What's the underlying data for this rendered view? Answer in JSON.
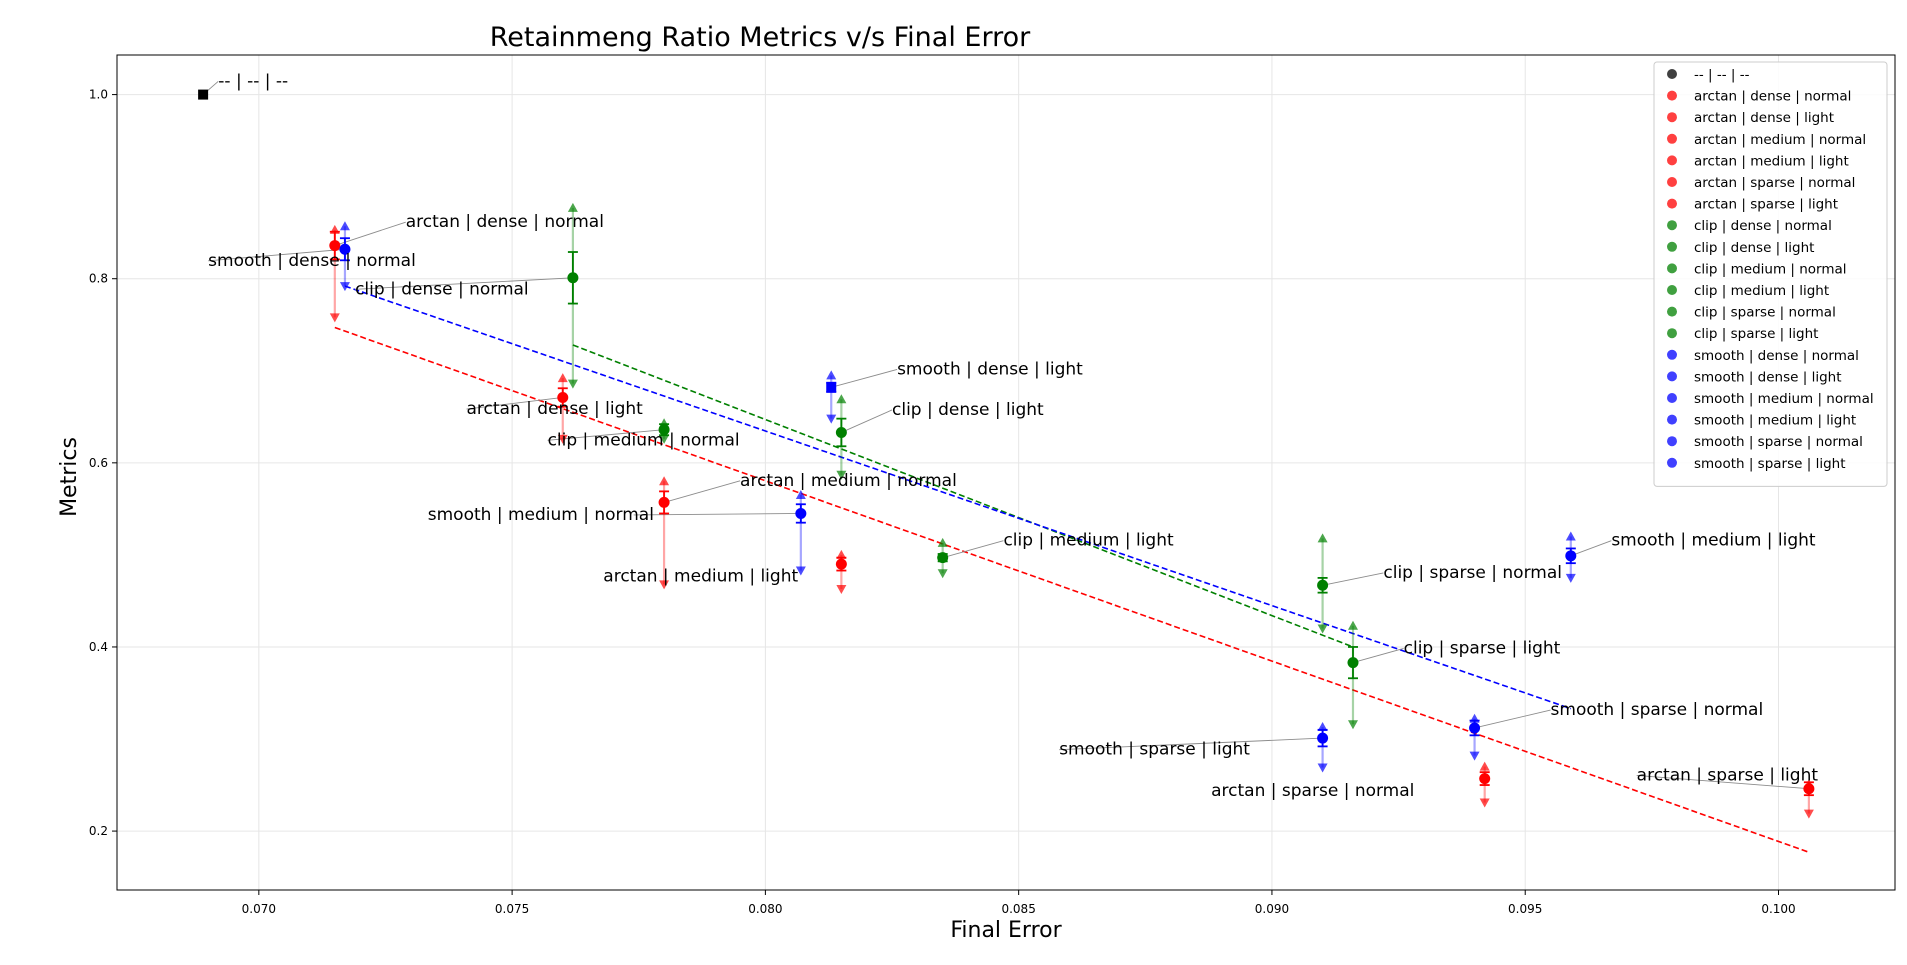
{
  "chart_data": {
    "type": "scatter",
    "title": "Retainmeng Ratio Metrics v/s Final Error",
    "xlabel": "Final Error",
    "ylabel": "Metrics",
    "xlim": [
      0.0672,
      0.1023
    ],
    "ylim": [
      0.136,
      1.043
    ],
    "xticks": [
      "0.070",
      "0.075",
      "0.080",
      "0.085",
      "0.090",
      "0.095",
      "0.100"
    ],
    "yticks": [
      "0.2",
      "0.4",
      "0.6",
      "0.8",
      "1.0"
    ],
    "grid": true,
    "legend_position": "top-right",
    "colors": {
      "--": "#000000",
      "arctan": "#ff0000",
      "clip": "#008000",
      "smooth": "#0000ff"
    },
    "points": [
      {
        "label": "-- | -- | --",
        "group": "--",
        "x": 0.0689,
        "y": 1.0,
        "err": 0.0,
        "hi": 1.0,
        "lo": 1.0,
        "marker": "s"
      },
      {
        "label": "arctan | dense | normal",
        "group": "arctan",
        "x": 0.0715,
        "y": 0.836,
        "err": 0.015,
        "hi": 0.853,
        "lo": 0.758,
        "marker": "o"
      },
      {
        "label": "arctan | dense | light",
        "group": "arctan",
        "x": 0.076,
        "y": 0.671,
        "err": 0.01,
        "hi": 0.692,
        "lo": 0.626,
        "marker": "o"
      },
      {
        "label": "arctan | medium | normal",
        "group": "arctan",
        "x": 0.078,
        "y": 0.557,
        "err": 0.012,
        "hi": 0.58,
        "lo": 0.468,
        "marker": "o"
      },
      {
        "label": "arctan | medium | light",
        "group": "arctan",
        "x": 0.0815,
        "y": 0.49,
        "err": 0.007,
        "hi": 0.5,
        "lo": 0.463,
        "marker": "o"
      },
      {
        "label": "arctan | sparse | normal",
        "group": "arctan",
        "x": 0.0942,
        "y": 0.257,
        "err": 0.007,
        "hi": 0.27,
        "lo": 0.231,
        "marker": "o"
      },
      {
        "label": "arctan | sparse | light",
        "group": "arctan",
        "x": 0.1006,
        "y": 0.246,
        "err": 0.007,
        "hi": 0.251,
        "lo": 0.219,
        "marker": "o"
      },
      {
        "label": "clip | dense | normal",
        "group": "clip",
        "x": 0.0762,
        "y": 0.801,
        "err": 0.028,
        "hi": 0.877,
        "lo": 0.686,
        "marker": "o"
      },
      {
        "label": "clip | dense | light",
        "group": "clip",
        "x": 0.0815,
        "y": 0.633,
        "err": 0.015,
        "hi": 0.669,
        "lo": 0.587,
        "marker": "o"
      },
      {
        "label": "clip | medium | normal",
        "group": "clip",
        "x": 0.078,
        "y": 0.636,
        "err": 0.006,
        "hi": 0.643,
        "lo": 0.626,
        "marker": "o"
      },
      {
        "label": "clip | medium | light",
        "group": "clip",
        "x": 0.0835,
        "y": 0.497,
        "err": 0.004,
        "hi": 0.513,
        "lo": 0.48,
        "marker": "o"
      },
      {
        "label": "clip | sparse | normal",
        "group": "clip",
        "x": 0.091,
        "y": 0.467,
        "err": 0.008,
        "hi": 0.518,
        "lo": 0.42,
        "marker": "o"
      },
      {
        "label": "clip | sparse | light",
        "group": "clip",
        "x": 0.0916,
        "y": 0.383,
        "err": 0.017,
        "hi": 0.423,
        "lo": 0.316,
        "marker": "o"
      },
      {
        "label": "smooth | dense | normal",
        "group": "smooth",
        "x": 0.0717,
        "y": 0.832,
        "err": 0.012,
        "hi": 0.857,
        "lo": 0.792,
        "marker": "o"
      },
      {
        "label": "smooth | dense | light",
        "group": "smooth",
        "x": 0.0813,
        "y": 0.682,
        "err": 0.005,
        "hi": 0.695,
        "lo": 0.648,
        "marker": "s"
      },
      {
        "label": "smooth | medium | normal",
        "group": "smooth",
        "x": 0.0807,
        "y": 0.545,
        "err": 0.01,
        "hi": 0.565,
        "lo": 0.483,
        "marker": "o"
      },
      {
        "label": "smooth | medium | light",
        "group": "smooth",
        "x": 0.0959,
        "y": 0.499,
        "err": 0.008,
        "hi": 0.52,
        "lo": 0.475,
        "marker": "o"
      },
      {
        "label": "smooth | sparse | normal",
        "group": "smooth",
        "x": 0.094,
        "y": 0.312,
        "err": 0.008,
        "hi": 0.322,
        "lo": 0.282,
        "marker": "o"
      },
      {
        "label": "smooth | sparse | light",
        "group": "smooth",
        "x": 0.091,
        "y": 0.301,
        "err": 0.009,
        "hi": 0.313,
        "lo": 0.269,
        "marker": "o"
      }
    ],
    "trend_lines": [
      {
        "group": "arctan",
        "x": [
          0.0715,
          0.1006
        ],
        "y": [
          0.747,
          0.177
        ],
        "style": "dashed"
      },
      {
        "group": "clip",
        "x": [
          0.0762,
          0.0916
        ],
        "y": [
          0.728,
          0.4
        ],
        "style": "dashed"
      },
      {
        "group": "smooth",
        "x": [
          0.0717,
          0.0959
        ],
        "y": [
          0.792,
          0.333
        ],
        "style": "dashed"
      }
    ],
    "annotations": [
      {
        "text": "-- | -- | --",
        "point": 0,
        "tx": 0.0692,
        "ty": 1.009,
        "anchor": "start"
      },
      {
        "text": "arctan | dense | normal",
        "point": 1,
        "tx": 0.0729,
        "ty": 0.856,
        "anchor": "start"
      },
      {
        "text": "smooth | dense | normal",
        "point": 13,
        "tx": 0.069,
        "ty": 0.814,
        "anchor": "start"
      },
      {
        "text": "clip | dense | normal",
        "point": 7,
        "tx": 0.0719,
        "ty": 0.783,
        "anchor": "start"
      },
      {
        "text": "smooth | dense | light",
        "point": 14,
        "tx": 0.0826,
        "ty": 0.696,
        "anchor": "start"
      },
      {
        "text": "clip | dense | light",
        "point": 8,
        "tx": 0.0825,
        "ty": 0.652,
        "anchor": "start"
      },
      {
        "text": "arctan | dense | light",
        "point": 2,
        "tx": 0.0741,
        "ty": 0.653,
        "anchor": "start"
      },
      {
        "text": "clip | medium | normal",
        "point": 9,
        "tx": 0.0757,
        "ty": 0.619,
        "anchor": "start"
      },
      {
        "text": "arctan | medium | normal",
        "point": 3,
        "tx": 0.0795,
        "ty": 0.575,
        "anchor": "start"
      },
      {
        "text": "smooth | medium | normal",
        "point": 15,
        "tx": 0.0778,
        "ty": 0.538,
        "anchor": "end",
        "leader_x": 0.0774
      },
      {
        "text": "arctan | medium | light",
        "point": 4,
        "tx": 0.0768,
        "ty": 0.471,
        "anchor": "start",
        "no_leader": true
      },
      {
        "text": "clip | medium | light",
        "point": 10,
        "tx": 0.0847,
        "ty": 0.51,
        "anchor": "start"
      },
      {
        "text": "clip | sparse | normal",
        "point": 11,
        "tx": 0.0922,
        "ty": 0.475,
        "anchor": "start"
      },
      {
        "text": "smooth | medium | light",
        "point": 16,
        "tx": 0.0967,
        "ty": 0.51,
        "anchor": "start"
      },
      {
        "text": "clip | sparse | light",
        "point": 12,
        "tx": 0.0926,
        "ty": 0.393,
        "anchor": "start"
      },
      {
        "text": "smooth | sparse | normal",
        "point": 17,
        "tx": 0.0955,
        "ty": 0.326,
        "anchor": "start"
      },
      {
        "text": "smooth | sparse | light",
        "point": 18,
        "tx": 0.0858,
        "ty": 0.283,
        "anchor": "start"
      },
      {
        "text": "arctan | sparse | normal",
        "point": 5,
        "tx": 0.0888,
        "ty": 0.238,
        "anchor": "start",
        "no_leader": true
      },
      {
        "text": "arctan | sparse | light",
        "point": 6,
        "tx": 0.0972,
        "ty": 0.255,
        "anchor": "start"
      }
    ]
  }
}
